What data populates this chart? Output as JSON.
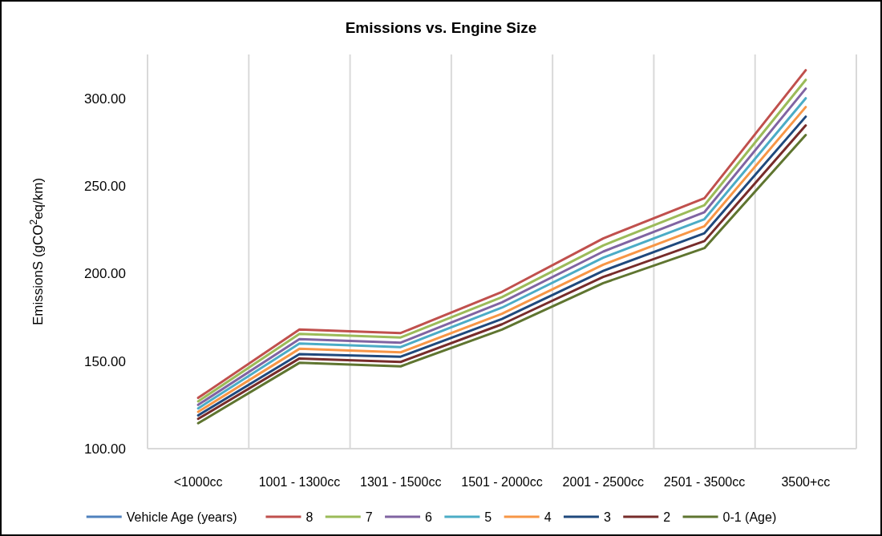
{
  "chart_data": {
    "type": "line",
    "title": "Emissions vs. Engine Size",
    "ylabel": "EmissionS (gCO$^{2}$eq/km)",
    "categories": [
      "<1000cc",
      "1001 - 1300cc",
      "1301 - 1500cc",
      "1501 - 2000cc",
      "2001 - 2500cc",
      "2501 - 3500cc",
      "3500+cc"
    ],
    "series": [
      {
        "name": "Vehicle Age (years)",
        "color": "#4f81bd",
        "values": [
          null,
          null,
          null,
          null,
          null,
          null,
          null
        ]
      },
      {
        "name": "8",
        "color": "#c0504d",
        "values": [
          129,
          168,
          166,
          189.5,
          220,
          243,
          316
        ]
      },
      {
        "name": "7",
        "color": "#9bbb59",
        "values": [
          127,
          165.5,
          163.5,
          186.5,
          216,
          239,
          310.5
        ]
      },
      {
        "name": "6",
        "color": "#8064a2",
        "values": [
          125,
          162.5,
          160.5,
          183.5,
          212.5,
          235,
          305.5
        ]
      },
      {
        "name": "5",
        "color": "#4bacc6",
        "values": [
          123,
          160,
          158,
          180.5,
          209,
          231,
          300
        ]
      },
      {
        "name": "4",
        "color": "#f79646",
        "values": [
          121,
          157,
          155,
          177,
          205,
          227,
          295
        ]
      },
      {
        "name": "3",
        "color": "#1f497d",
        "values": [
          119,
          154,
          152.5,
          174,
          201.5,
          223,
          289.5
        ]
      },
      {
        "name": "2",
        "color": "#772c2a",
        "values": [
          117,
          151.5,
          149.5,
          171,
          198,
          218.5,
          284.5
        ]
      },
      {
        "name": "0-1 (Age)",
        "color": "#5f7530",
        "values": [
          114.5,
          149,
          147,
          168,
          194.5,
          214.5,
          279
        ]
      }
    ],
    "ylim": [
      100,
      325
    ],
    "yticks": [
      {
        "value": 100,
        "label": "100.00"
      },
      {
        "value": 150,
        "label": "150.00"
      },
      {
        "value": 200,
        "label": "200.00"
      },
      {
        "value": 250,
        "label": "250.00"
      },
      {
        "value": 300,
        "label": "300.00"
      }
    ],
    "grid": "x",
    "legend": "bottom",
    "marker": "none",
    "line_style": "solid"
  }
}
